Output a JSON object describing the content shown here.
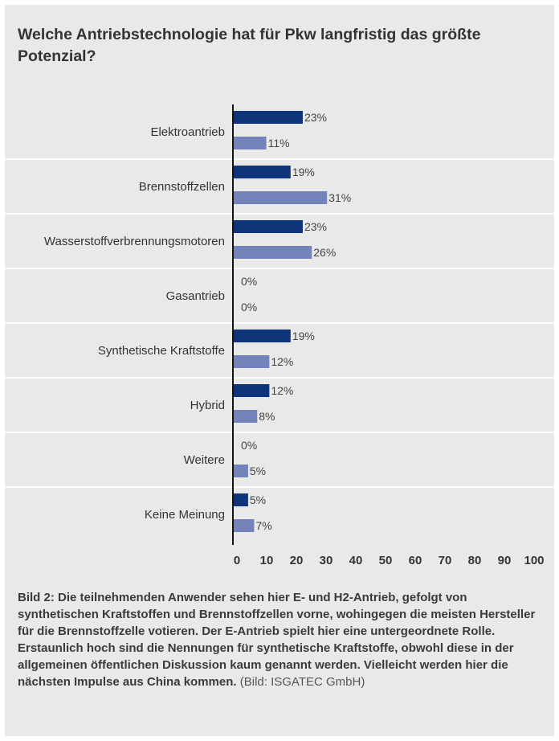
{
  "title": "Welche Antriebstechnologie hat für Pkw langfristig das größte Potenzial?",
  "chart_data": {
    "type": "bar",
    "orientation": "horizontal",
    "title": "Welche Antriebstechnologie hat für Pkw langfristig das größte Potenzial?",
    "xlabel": "",
    "ylabel": "",
    "xlim": [
      0,
      100
    ],
    "x_ticks": [
      "0",
      "10",
      "20",
      "30",
      "40",
      "50",
      "60",
      "70",
      "80",
      "90",
      "100"
    ],
    "categories": [
      "Elektroantrieb",
      "Brennstoffzellen",
      "Wasserstoffverbrennungsmotoren",
      "Gasantrieb",
      "Synthetische Kraftstoffe",
      "Hybrid",
      "Weitere",
      "Keine Meinung"
    ],
    "series": [
      {
        "values": [
          23,
          19,
          23,
          0,
          19,
          12,
          0,
          5
        ],
        "labels": [
          "23%",
          "19%",
          "23%",
          "0%",
          "19%",
          "12%",
          "0%",
          "5%"
        ],
        "color": "#0f3479"
      },
      {
        "values": [
          11,
          31,
          26,
          0,
          12,
          8,
          5,
          7
        ],
        "labels": [
          "11%",
          "31%",
          "26%",
          "0%",
          "12%",
          "8%",
          "5%",
          "7%"
        ],
        "color": "#7384bb"
      }
    ],
    "grid": false,
    "legend": "none"
  },
  "caption": {
    "label": "Bild 2:",
    "text": "Die teilnehmenden Anwender sehen hier E- und H2-Antrieb, gefolgt von synthetischen Kraftstoffen und Brennstoffzellen vorne, wohingegen die meisten Hersteller für die Brennstoffzelle votieren. Der E-Antrieb spielt hier eine untergeordnete Rolle. Erstaunlich hoch sind die Nennungen für synthe­tische Kraftstoffe, obwohl diese in der allgemeinen öffentlichen Diskussion kaum genannt werden. Vielleicht werden hier die nächsten Impulse aus China kommen.",
    "credit": "(Bild: ISGATEC GmbH)"
  }
}
